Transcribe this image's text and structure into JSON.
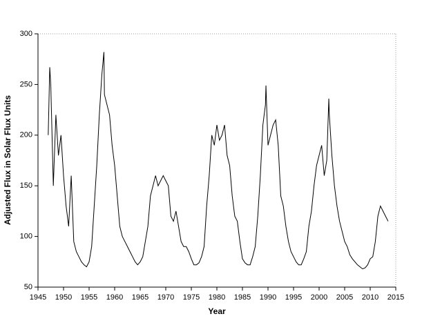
{
  "chart_data": {
    "type": "line",
    "xlabel": "Year",
    "ylabel": "Adjusted Flux in Solar Flux Units",
    "xlim": [
      1945,
      2015
    ],
    "xticks": [
      1945,
      1950,
      1955,
      1960,
      1965,
      1970,
      1975,
      1980,
      1985,
      1990,
      1995,
      2000,
      2005,
      2010,
      2015
    ],
    "ylim": [
      50,
      300
    ],
    "yticks": [
      50,
      100,
      150,
      200,
      250,
      300
    ],
    "series": [
      {
        "name": "Adjusted Flux",
        "color": "#000000",
        "x": [
          1947.0,
          1947.3,
          1947.5,
          1948.0,
          1948.5,
          1949.0,
          1949.5,
          1950.0,
          1950.5,
          1951.0,
          1951.5,
          1952.0,
          1952.5,
          1953.0,
          1953.5,
          1954.0,
          1954.5,
          1955.0,
          1955.5,
          1956.0,
          1956.5,
          1957.0,
          1957.5,
          1957.9,
          1958.0,
          1958.5,
          1959.0,
          1959.5,
          1960.0,
          1960.5,
          1961.0,
          1961.5,
          1962.0,
          1962.5,
          1963.0,
          1963.5,
          1964.0,
          1964.5,
          1965.0,
          1965.5,
          1966.0,
          1966.5,
          1967.0,
          1967.5,
          1968.0,
          1968.5,
          1969.0,
          1969.5,
          1970.0,
          1970.5,
          1971.0,
          1971.5,
          1972.0,
          1972.5,
          1973.0,
          1973.5,
          1974.0,
          1974.5,
          1975.0,
          1975.5,
          1976.0,
          1976.5,
          1977.0,
          1977.5,
          1978.0,
          1978.5,
          1979.0,
          1979.5,
          1980.0,
          1980.5,
          1981.0,
          1981.5,
          1982.0,
          1982.5,
          1983.0,
          1983.5,
          1984.0,
          1984.5,
          1985.0,
          1985.5,
          1986.0,
          1986.5,
          1987.0,
          1987.5,
          1988.0,
          1988.5,
          1989.0,
          1989.5,
          1989.6,
          1990.0,
          1990.5,
          1991.0,
          1991.5,
          1992.0,
          1992.5,
          1993.0,
          1993.5,
          1994.0,
          1994.5,
          1995.0,
          1995.5,
          1996.0,
          1996.5,
          1997.0,
          1997.5,
          1998.0,
          1998.5,
          1999.0,
          1999.5,
          2000.0,
          2000.5,
          2001.0,
          2001.5,
          2001.9,
          2002.0,
          2002.5,
          2003.0,
          2003.5,
          2004.0,
          2004.5,
          2005.0,
          2005.5,
          2006.0,
          2006.5,
          2007.0,
          2007.5,
          2008.0,
          2008.5,
          2009.0,
          2009.5,
          2010.0,
          2010.5,
          2011.0,
          2011.5,
          2012.0,
          2012.5,
          2013.0,
          2013.5
        ],
        "values": [
          200,
          267,
          250,
          150,
          220,
          180,
          200,
          160,
          130,
          110,
          160,
          95,
          85,
          80,
          75,
          72,
          70,
          75,
          90,
          130,
          170,
          220,
          260,
          282,
          240,
          230,
          220,
          190,
          170,
          140,
          110,
          100,
          95,
          90,
          85,
          80,
          75,
          72,
          75,
          80,
          95,
          110,
          140,
          150,
          160,
          150,
          155,
          160,
          155,
          150,
          120,
          115,
          125,
          110,
          95,
          90,
          90,
          85,
          78,
          72,
          72,
          74,
          80,
          90,
          130,
          160,
          200,
          190,
          210,
          195,
          200,
          210,
          180,
          170,
          140,
          120,
          115,
          95,
          78,
          74,
          72,
          72,
          80,
          90,
          120,
          160,
          210,
          230,
          249,
          190,
          200,
          210,
          215,
          190,
          140,
          130,
          110,
          95,
          85,
          80,
          75,
          72,
          72,
          78,
          85,
          110,
          125,
          150,
          170,
          180,
          190,
          160,
          175,
          236,
          220,
          180,
          150,
          130,
          115,
          105,
          95,
          90,
          82,
          78,
          75,
          72,
          70,
          68,
          69,
          72,
          78,
          80,
          95,
          120,
          130,
          125,
          120,
          115
        ]
      }
    ]
  }
}
